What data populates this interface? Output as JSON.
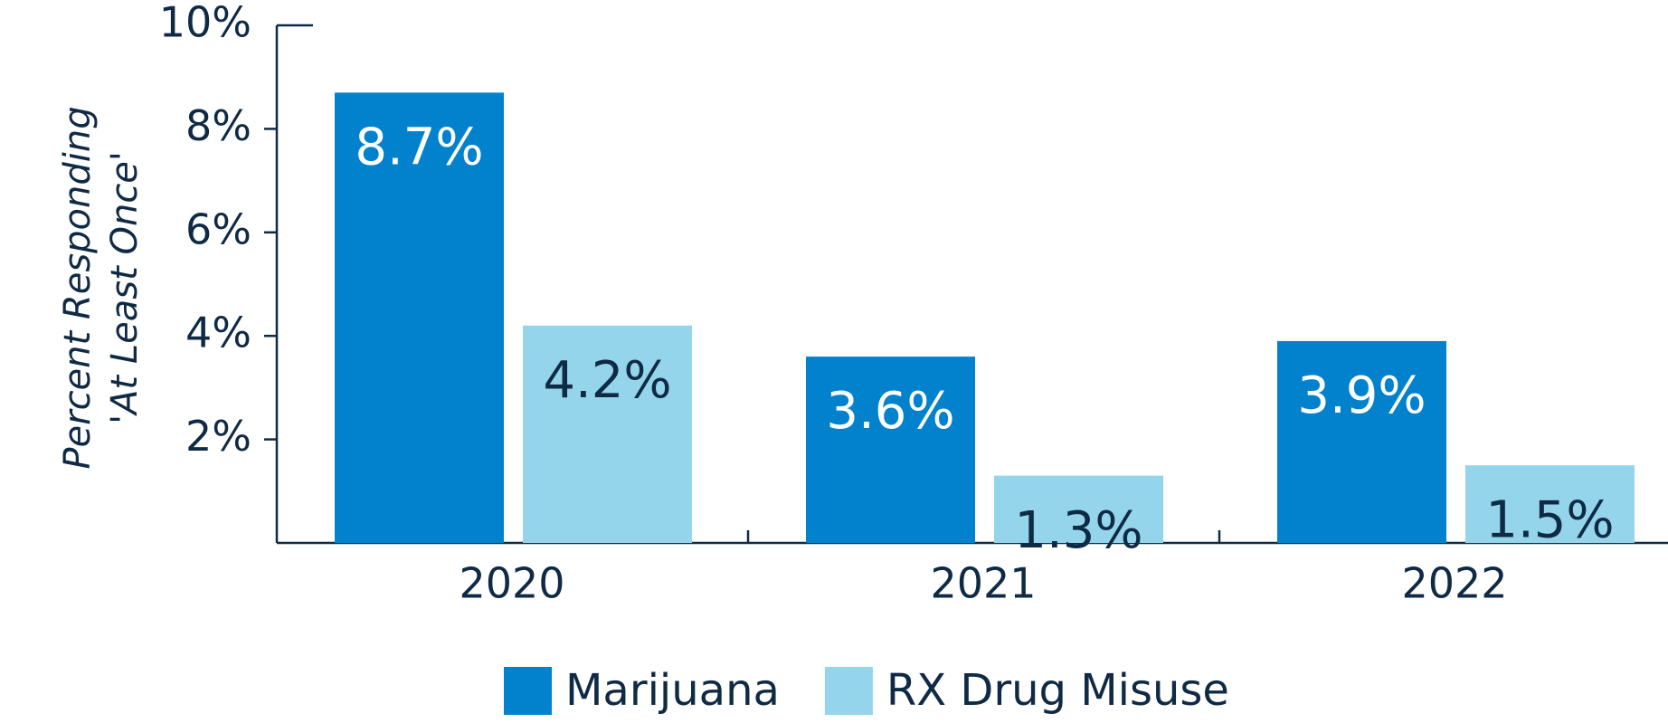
{
  "chart_data": {
    "type": "bar",
    "y_axis_label": [
      "Percent Responding",
      "'At Least Once'"
    ],
    "categories": [
      "2020",
      "2021",
      "2022"
    ],
    "series": [
      {
        "name": "Marijuana",
        "color": "#0282cc",
        "values": [
          8.7,
          3.6,
          3.9
        ],
        "value_labels": [
          "8.7%",
          "3.6%",
          "3.9%"
        ]
      },
      {
        "name": "RX Drug Misuse",
        "color": "#94d5ec",
        "values": [
          4.2,
          1.3,
          1.5
        ],
        "value_labels": [
          "4.2%",
          "1.3%",
          "1.5%"
        ]
      }
    ],
    "ylim": [
      0,
      10
    ],
    "yticks": [
      {
        "value": 2,
        "label": "2%"
      },
      {
        "value": 4,
        "label": "4%"
      },
      {
        "value": 6,
        "label": "6%"
      },
      {
        "value": 8,
        "label": "8%"
      },
      {
        "value": 10,
        "label": "10%"
      }
    ],
    "legend": "bottom"
  }
}
